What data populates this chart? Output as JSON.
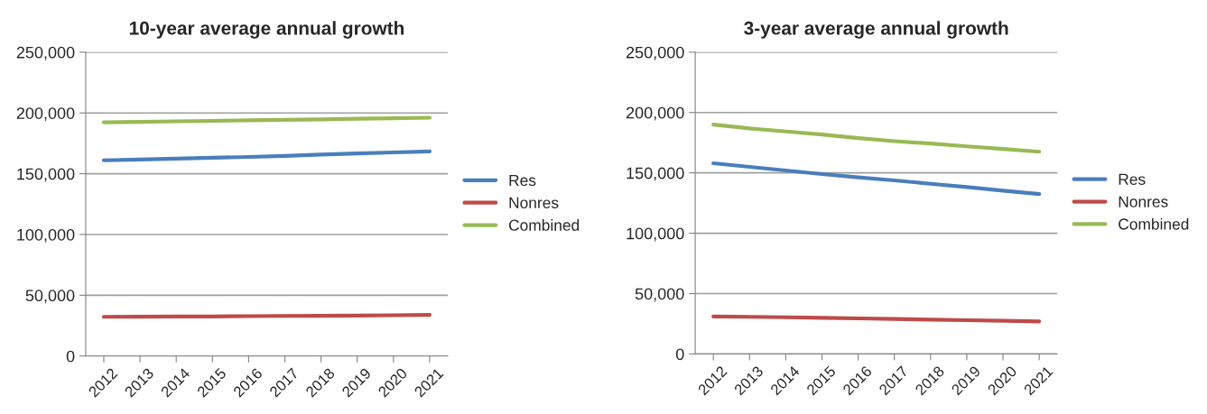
{
  "chart_data": [
    {
      "type": "line",
      "title": "10-year average annual growth",
      "categories": [
        "2012",
        "2013",
        "2014",
        "2015",
        "2016",
        "2017",
        "2018",
        "2019",
        "2020",
        "2021"
      ],
      "series": [
        {
          "name": "Res",
          "color": "#4a7ebb",
          "values": [
            161000,
            161700,
            162400,
            163100,
            163800,
            164600,
            165800,
            166700,
            167500,
            168400
          ]
        },
        {
          "name": "Nonres",
          "color": "#be4b48",
          "values": [
            32300,
            32400,
            32500,
            32600,
            32800,
            33000,
            33100,
            33300,
            33600,
            33900
          ]
        },
        {
          "name": "Combined",
          "color": "#98b954",
          "values": [
            192300,
            192700,
            193100,
            193500,
            193900,
            194300,
            194700,
            195200,
            195600,
            196100
          ]
        }
      ],
      "ylim": [
        0,
        250000
      ],
      "yticks": [
        {
          "value": 0,
          "label": "0"
        },
        {
          "value": 50000,
          "label": "50,000"
        },
        {
          "value": 100000,
          "label": "100,000"
        },
        {
          "value": 150000,
          "label": "150,000"
        },
        {
          "value": 200000,
          "label": "200,000"
        },
        {
          "value": 250000,
          "label": "250,000"
        }
      ],
      "grid": "y",
      "legend": "right"
    },
    {
      "type": "line",
      "title": "3-year average annual growth",
      "categories": [
        "2012",
        "2013",
        "2014",
        "2015",
        "2016",
        "2017",
        "2018",
        "2019",
        "2020",
        "2021"
      ],
      "series": [
        {
          "name": "Res",
          "color": "#4a7ebb",
          "values": [
            158000,
            155000,
            152000,
            149000,
            146300,
            143800,
            141000,
            138300,
            135300,
            132500
          ]
        },
        {
          "name": "Nonres",
          "color": "#be4b48",
          "values": [
            31000,
            30800,
            30400,
            29900,
            29500,
            29000,
            28500,
            28000,
            27500,
            27000
          ]
        },
        {
          "name": "Combined",
          "color": "#98b954",
          "values": [
            190000,
            186800,
            184300,
            181800,
            178800,
            176300,
            174300,
            172000,
            169800,
            167500
          ]
        }
      ],
      "ylim": [
        0,
        250000
      ],
      "yticks": [
        {
          "value": 0,
          "label": "0"
        },
        {
          "value": 50000,
          "label": "50,000"
        },
        {
          "value": 100000,
          "label": "100,000"
        },
        {
          "value": 150000,
          "label": "150,000"
        },
        {
          "value": 200000,
          "label": "200,000"
        },
        {
          "value": 250000,
          "label": "250,000"
        }
      ],
      "grid": "y",
      "legend": "right"
    }
  ]
}
